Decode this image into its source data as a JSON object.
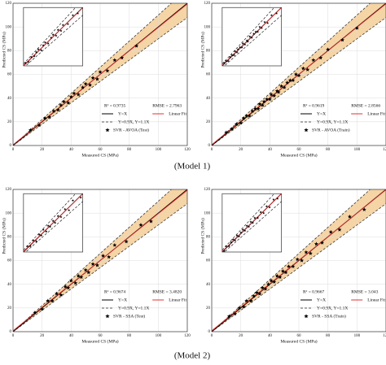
{
  "chart_data": [
    {
      "type": "scatter",
      "x_label": "Measured CS (MPa)",
      "y_label": "Predicted CS (MPa)",
      "annotations": [
        "R² = 0.9735",
        "RMSE = 2.7963"
      ],
      "legend": [
        "Y=X",
        "Linear Fit",
        "Y=0.9X, Y=1.1X",
        "SVR - AVOA (Test)"
      ],
      "bounds": [
        0.9,
        1.1
      ],
      "grid": true,
      "point_color": "#000000",
      "fit_color": "#e03030",
      "band_color": "#f2c98f",
      "xlim": [
        0,
        120
      ],
      "ylim": [
        0,
        120
      ],
      "xticks": [
        0,
        20,
        40,
        60,
        80,
        100,
        120
      ],
      "yticks": [
        0,
        20,
        40,
        60,
        80,
        100,
        120
      ],
      "inset": {
        "xlim": [
          20,
          80
        ],
        "ylim": [
          20,
          80
        ]
      },
      "x": [
        12,
        18,
        22,
        25,
        28,
        31,
        33,
        35,
        38,
        40,
        42,
        45,
        48,
        50,
        53,
        55,
        58,
        60,
        65,
        70,
        75,
        85
      ],
      "y": [
        13,
        17,
        23,
        24,
        29,
        30,
        34,
        37,
        36,
        41,
        44,
        43,
        49,
        52,
        51,
        57,
        56,
        62,
        63,
        72,
        74,
        84
      ]
    },
    {
      "type": "scatter",
      "x_label": "Measured CS (MPa)",
      "y_label": "Predicted CS (MPa)",
      "annotations": [
        "R² = 0.9619",
        "RMSE = 2.8566"
      ],
      "legend": [
        "Y=X",
        "Linear Fit",
        "Y=0.9X, Y=1.1X",
        "SVR - AVOA (Train)"
      ],
      "bounds": [
        0.9,
        1.1
      ],
      "grid": true,
      "point_color": "#000000",
      "fit_color": "#e03030",
      "band_color": "#f2c98f",
      "xlim": [
        0,
        120
      ],
      "ylim": [
        0,
        120
      ],
      "xticks": [
        0,
        20,
        40,
        60,
        80,
        100,
        120
      ],
      "yticks": [
        0,
        20,
        40,
        60,
        80,
        100,
        120
      ],
      "inset": {
        "xlim": [
          20,
          80
        ],
        "ylim": [
          20,
          80
        ]
      },
      "x": [
        10,
        14,
        17,
        20,
        22,
        24,
        26,
        28,
        30,
        32,
        33,
        35,
        36,
        38,
        40,
        41,
        43,
        45,
        46,
        48,
        50,
        52,
        54,
        56,
        58,
        60,
        63,
        66,
        70,
        75,
        80,
        90,
        100
      ],
      "y": [
        11,
        14,
        18,
        19,
        23,
        25,
        25,
        29,
        31,
        31,
        35,
        34,
        37,
        39,
        39,
        43,
        42,
        46,
        45,
        50,
        49,
        53,
        55,
        55,
        60,
        59,
        65,
        64,
        72,
        74,
        81,
        89,
        99
      ]
    },
    {
      "type": "scatter",
      "x_label": "Measured CS (MPa)",
      "y_label": "Predicted CS (MPa)",
      "annotations": [
        "R² = 0.9674",
        "RMSE = 3.4820"
      ],
      "legend": [
        "Y=X",
        "Linear Fit",
        "Y=0.9X, Y=1.1X",
        "SVR - SSA (Test)"
      ],
      "bounds": [
        0.9,
        1.1
      ],
      "grid": true,
      "point_color": "#000000",
      "fit_color": "#e03030",
      "band_color": "#f2c98f",
      "xlim": [
        0,
        120
      ],
      "ylim": [
        0,
        120
      ],
      "xticks": [
        0,
        20,
        40,
        60,
        80,
        100,
        120
      ],
      "yticks": [
        0,
        20,
        40,
        60,
        80,
        100,
        120
      ],
      "inset": {
        "xlim": [
          20,
          80
        ],
        "ylim": [
          20,
          80
        ]
      },
      "x": [
        15,
        20,
        24,
        27,
        30,
        33,
        36,
        38,
        40,
        43,
        45,
        47,
        50,
        52,
        55,
        58,
        62,
        66,
        70,
        78,
        88,
        95
      ],
      "y": [
        16,
        19,
        26,
        26,
        32,
        31,
        38,
        37,
        43,
        41,
        47,
        46,
        52,
        50,
        57,
        56,
        64,
        63,
        73,
        76,
        90,
        93
      ]
    },
    {
      "type": "scatter",
      "x_label": "Measured CS (MPa)",
      "y_label": "Predicted CS (MPa)",
      "annotations": [
        "R² = 0.9667",
        "RMSE = 3.043"
      ],
      "legend": [
        "Y=X",
        "Linear Fit",
        "Y=0.9X, Y=1.1X",
        "SVR - SSA (Train)"
      ],
      "bounds": [
        0.9,
        1.1
      ],
      "grid": true,
      "point_color": "#000000",
      "fit_color": "#e03030",
      "band_color": "#f2c98f",
      "xlim": [
        0,
        120
      ],
      "ylim": [
        0,
        120
      ],
      "xticks": [
        0,
        20,
        40,
        60,
        80,
        100,
        120
      ],
      "yticks": [
        0,
        20,
        40,
        60,
        80,
        100,
        120
      ],
      "inset": {
        "xlim": [
          20,
          80
        ],
        "ylim": [
          20,
          80
        ]
      },
      "x": [
        12,
        16,
        19,
        22,
        24,
        27,
        29,
        31,
        33,
        35,
        37,
        39,
        41,
        43,
        45,
        47,
        49,
        51,
        53,
        56,
        59,
        62,
        65,
        68,
        72,
        76,
        82,
        88,
        95,
        105
      ],
      "y": [
        13,
        15,
        20,
        21,
        26,
        26,
        30,
        33,
        32,
        37,
        36,
        40,
        43,
        42,
        47,
        46,
        51,
        50,
        55,
        55,
        61,
        60,
        67,
        66,
        74,
        75,
        84,
        86,
        97,
        103
      ]
    }
  ],
  "captions": [
    "(Model 1)",
    "(Model 2)"
  ]
}
